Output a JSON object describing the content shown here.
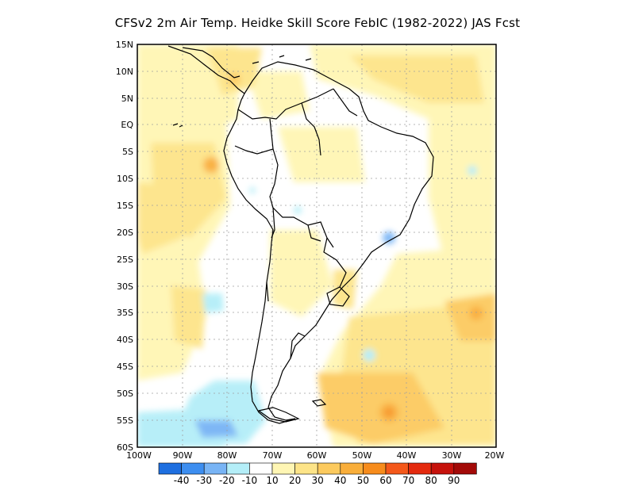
{
  "title": "CFSv2  2m Air Temp. Heidke Skill Score FebIC (1982-2022) JAS Fcst",
  "lat_labels": [
    "15N",
    "10N",
    "5N",
    "EQ",
    "5S",
    "10S",
    "15S",
    "20S",
    "25S",
    "30S",
    "35S",
    "40S",
    "45S",
    "50S",
    "55S",
    "60S"
  ],
  "lon_labels": [
    "100W",
    "90W",
    "80W",
    "70W",
    "60W",
    "50W",
    "40W",
    "30W",
    "20W"
  ],
  "colorbar": {
    "colors": [
      "#1e6fe0",
      "#3d8ef0",
      "#78b4f5",
      "#b4eef8",
      "#ffffff",
      "#fff6b4",
      "#fde488",
      "#fcca5e",
      "#f9ae3a",
      "#f78c1c",
      "#f4581a",
      "#e42a0e",
      "#c6120c",
      "#a30a08"
    ],
    "labels": [
      "-40",
      "-30",
      "-20",
      "-10",
      "10",
      "20",
      "30",
      "40",
      "50",
      "60",
      "70",
      "80",
      "90"
    ]
  },
  "map_extent": {
    "lon": [
      -100,
      -20
    ],
    "lat": [
      -60,
      15
    ]
  }
}
